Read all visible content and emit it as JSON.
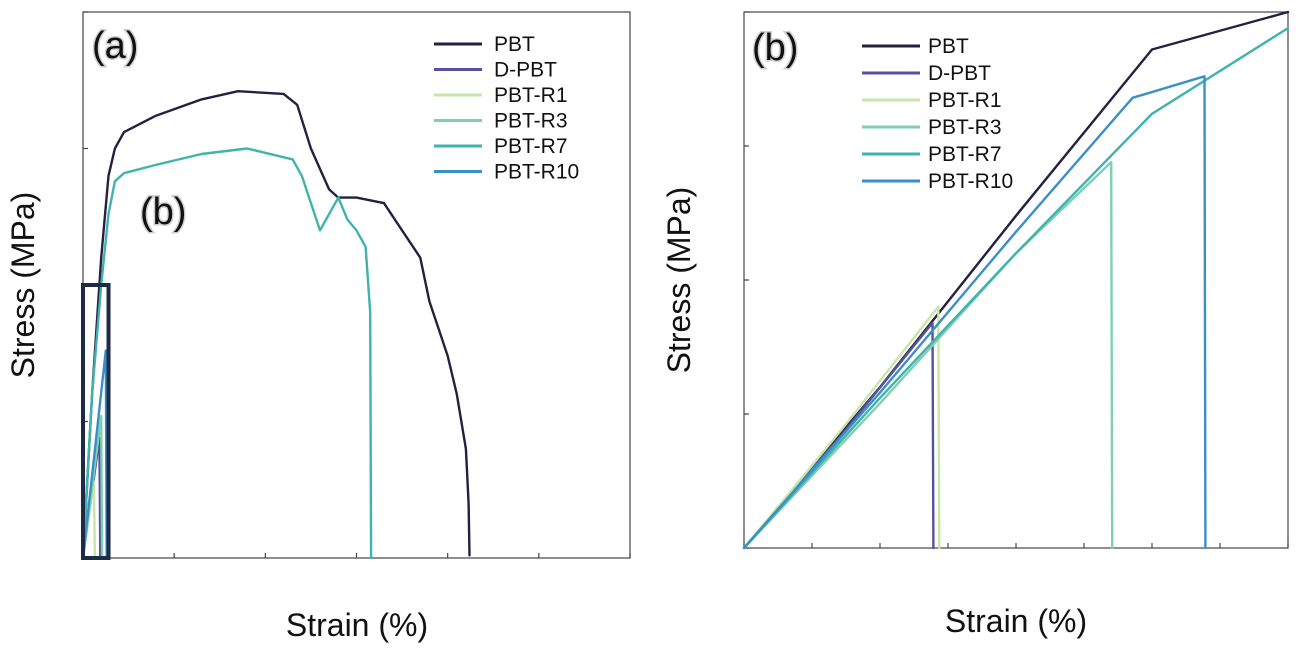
{
  "colors": {
    "PBT": "#23213f",
    "D-PBT": "#55519c",
    "PBT-R1": "#c8e6a8",
    "PBT-R3": "#7fcfb3",
    "PBT-R7": "#3fb3ac",
    "PBT-R10": "#3a8fc6",
    "inset_box": "#1d2b48"
  },
  "chart_data": [
    {
      "id": "a",
      "type": "line",
      "panel_label": "(a)",
      "inset_label": "(b)",
      "xlabel": "Strain (%)",
      "ylabel": "Stress (MPa)",
      "xlim": [
        0,
        600
      ],
      "ylim": [
        0,
        100
      ],
      "x_ticks": [
        0,
        100,
        200,
        300,
        400,
        500,
        600
      ],
      "y_ticks": [
        0,
        25,
        50,
        75,
        100
      ],
      "tick_labels_shown": false,
      "legend": "top-right",
      "inset_box": {
        "x": [
          0,
          28
        ],
        "y": [
          0,
          50
        ]
      },
      "series": [
        {
          "name": "PBT",
          "points": [
            [
              0,
              0
            ],
            [
              10,
              30
            ],
            [
              20,
              55
            ],
            [
              28,
              70
            ],
            [
              35,
              75
            ],
            [
              45,
              78
            ],
            [
              80,
              81
            ],
            [
              130,
              84
            ],
            [
              170,
              85.5
            ],
            [
              220,
              85
            ],
            [
              235,
              83
            ],
            [
              250,
              75
            ],
            [
              270,
              67.5
            ],
            [
              280,
              66
            ],
            [
              300,
              66
            ],
            [
              330,
              65
            ],
            [
              350,
              60
            ],
            [
              370,
              55
            ],
            [
              380,
              47
            ],
            [
              390,
              42
            ],
            [
              400,
              37
            ],
            [
              410,
              30
            ],
            [
              420,
              20
            ],
            [
              423,
              10
            ],
            [
              424,
              0.5
            ]
          ]
        },
        {
          "name": "D-PBT",
          "points": [
            [
              0,
              0
            ],
            [
              18,
              22
            ],
            [
              19,
              0
            ]
          ]
        },
        {
          "name": "PBT-R1",
          "points": [
            [
              0,
              0
            ],
            [
              12,
              14
            ],
            [
              13,
              0
            ]
          ]
        },
        {
          "name": "PBT-R3",
          "points": [
            [
              0,
              0
            ],
            [
              20,
              26
            ],
            [
              21,
              0
            ]
          ]
        },
        {
          "name": "PBT-R7",
          "points": [
            [
              0,
              0
            ],
            [
              10,
              30
            ],
            [
              20,
              50
            ],
            [
              28,
              63
            ],
            [
              35,
              69
            ],
            [
              45,
              70.5
            ],
            [
              80,
              72
            ],
            [
              130,
              74
            ],
            [
              180,
              75
            ],
            [
              230,
              73
            ],
            [
              240,
              70
            ],
            [
              260,
              60
            ],
            [
              280,
              66
            ],
            [
              290,
              62
            ],
            [
              300,
              60
            ],
            [
              310,
              57
            ],
            [
              315,
              45
            ],
            [
              316,
              0
            ]
          ]
        },
        {
          "name": "PBT-R10",
          "points": [
            [
              0,
              0
            ],
            [
              25,
              38
            ],
            [
              26,
              0
            ]
          ]
        }
      ]
    },
    {
      "id": "b",
      "type": "line",
      "panel_label": "(b)",
      "xlabel": "Strain (%)",
      "ylabel": "Stress (MPa)",
      "xlim": [
        0,
        28
      ],
      "ylim": [
        0,
        50
      ],
      "x_ticks": [
        0,
        3.5,
        7,
        10.5,
        14,
        17.5,
        21,
        24.5,
        28
      ],
      "y_ticks": [
        0,
        12.5,
        25,
        37.5,
        50
      ],
      "tick_labels_shown": false,
      "legend": "top-left",
      "series": [
        {
          "name": "PBT",
          "points": [
            [
              0,
              0
            ],
            [
              7,
              15
            ],
            [
              14,
              31
            ],
            [
              21,
              46.5
            ],
            [
              28,
              50
            ]
          ]
        },
        {
          "name": "D-PBT",
          "points": [
            [
              0,
              0
            ],
            [
              5,
              10.5
            ],
            [
              9.7,
              21
            ],
            [
              9.75,
              0
            ]
          ]
        },
        {
          "name": "PBT-R1",
          "points": [
            [
              0,
              0
            ],
            [
              5,
              11
            ],
            [
              10,
              22.5
            ],
            [
              10.05,
              0
            ]
          ]
        },
        {
          "name": "PBT-R3",
          "points": [
            [
              0,
              0
            ],
            [
              7,
              13.5
            ],
            [
              14,
              27.5
            ],
            [
              18.9,
              36
            ],
            [
              18.95,
              0
            ]
          ]
        },
        {
          "name": "PBT-R7",
          "points": [
            [
              0,
              0
            ],
            [
              7,
              14
            ],
            [
              14,
              27.5
            ],
            [
              21,
              40.5
            ],
            [
              28,
              48.5
            ]
          ]
        },
        {
          "name": "PBT-R10",
          "points": [
            [
              0,
              0
            ],
            [
              7,
              14.5
            ],
            [
              14,
              29.5
            ],
            [
              20,
              42
            ],
            [
              23.7,
              44
            ],
            [
              23.75,
              0
            ]
          ]
        }
      ]
    }
  ]
}
